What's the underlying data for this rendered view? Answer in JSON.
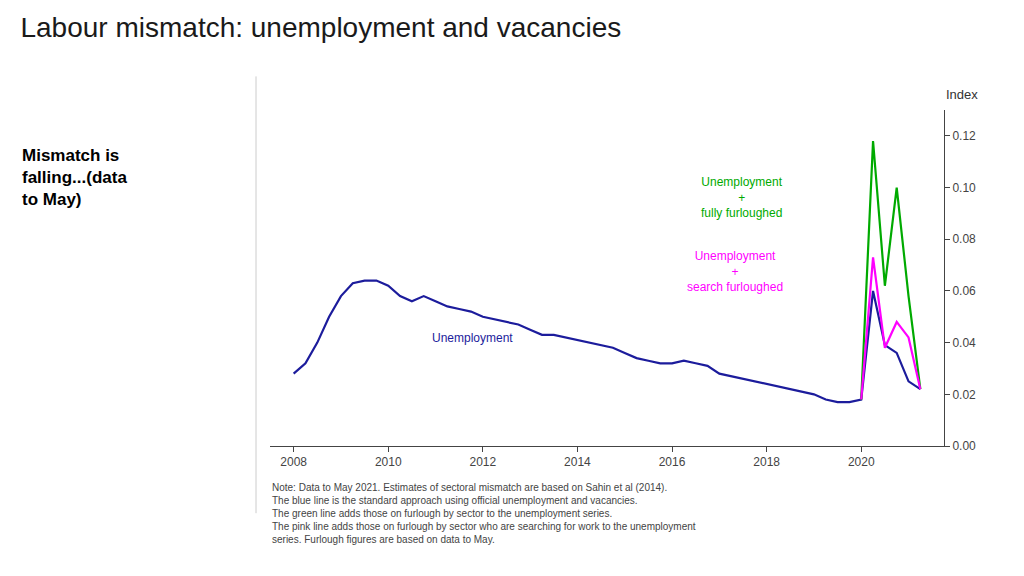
{
  "chart_data": {
    "type": "line",
    "title": "Labour mismatch: unemployment and vacancies",
    "subtitle": "Mismatch is\nfalling...(data\nto May)",
    "ylabel": "Index",
    "note": "Note: Data to May 2021. Estimates of sectoral mismatch are based on Sahin et al (2014).\nThe blue line is the standard approach using official unemployment and vacancies.\nThe green line adds those on furlough by sector to the unemployment series.\nThe pink line adds those on furlough by sector who are searching for work to the unemployment\nseries. Furlough figures are based on data to May.",
    "series": [
      {
        "name": "Unemployment",
        "color": "#1c1c9c",
        "x": [
          2008.0,
          2008.25,
          2008.5,
          2008.75,
          2009.0,
          2009.25,
          2009.5,
          2009.75,
          2010.0,
          2010.25,
          2010.5,
          2010.75,
          2011.0,
          2011.25,
          2011.5,
          2011.75,
          2012.0,
          2012.25,
          2012.5,
          2012.75,
          2013.0,
          2013.25,
          2013.5,
          2013.75,
          2014.0,
          2014.25,
          2014.5,
          2014.75,
          2015.0,
          2015.25,
          2015.5,
          2015.75,
          2016.0,
          2016.25,
          2016.5,
          2016.75,
          2017.0,
          2017.25,
          2017.5,
          2017.75,
          2018.0,
          2018.25,
          2018.5,
          2018.75,
          2019.0,
          2019.25,
          2019.5,
          2019.75,
          2020.0,
          2020.25,
          2020.5,
          2020.75,
          2021.0,
          2021.25
        ],
        "values": [
          0.028,
          0.032,
          0.04,
          0.05,
          0.058,
          0.063,
          0.064,
          0.064,
          0.062,
          0.058,
          0.056,
          0.058,
          0.056,
          0.054,
          0.053,
          0.052,
          0.05,
          0.049,
          0.048,
          0.047,
          0.045,
          0.043,
          0.043,
          0.042,
          0.041,
          0.04,
          0.039,
          0.038,
          0.036,
          0.034,
          0.033,
          0.032,
          0.032,
          0.033,
          0.032,
          0.031,
          0.028,
          0.027,
          0.026,
          0.025,
          0.024,
          0.023,
          0.022,
          0.021,
          0.02,
          0.018,
          0.017,
          0.017,
          0.018,
          0.06,
          0.039,
          0.036,
          0.025,
          0.022
        ]
      },
      {
        "name": "Unemployment\n+\nfully furloughed",
        "color": "#00aa00",
        "x": [
          2020.0,
          2020.25,
          2020.5,
          2020.75,
          2021.0,
          2021.25
        ],
        "values": [
          0.018,
          0.118,
          0.062,
          0.1,
          0.058,
          0.022
        ]
      },
      {
        "name": "Unemployment\n+\nsearch furloughed",
        "color": "#ff00ff",
        "x": [
          2020.0,
          2020.25,
          2020.5,
          2020.75,
          2021.0,
          2021.25
        ],
        "values": [
          0.018,
          0.073,
          0.038,
          0.048,
          0.042,
          0.022
        ]
      }
    ],
    "xlim": [
      2007.5,
      2021.75
    ],
    "xticks": [
      2008,
      2010,
      2012,
      2014,
      2016,
      2018,
      2020
    ],
    "ylim": [
      0.0,
      0.13
    ],
    "yticks": [
      {
        "value": 0.0,
        "label": "0.00"
      },
      {
        "value": 0.02,
        "label": "0.02"
      },
      {
        "value": 0.04,
        "label": "0.04"
      },
      {
        "value": 0.06,
        "label": "0.06"
      },
      {
        "value": 0.08,
        "label": "0.08"
      },
      {
        "value": 0.1,
        "label": "0.10"
      },
      {
        "value": 0.12,
        "label": "0.12"
      }
    ],
    "grid": false
  }
}
